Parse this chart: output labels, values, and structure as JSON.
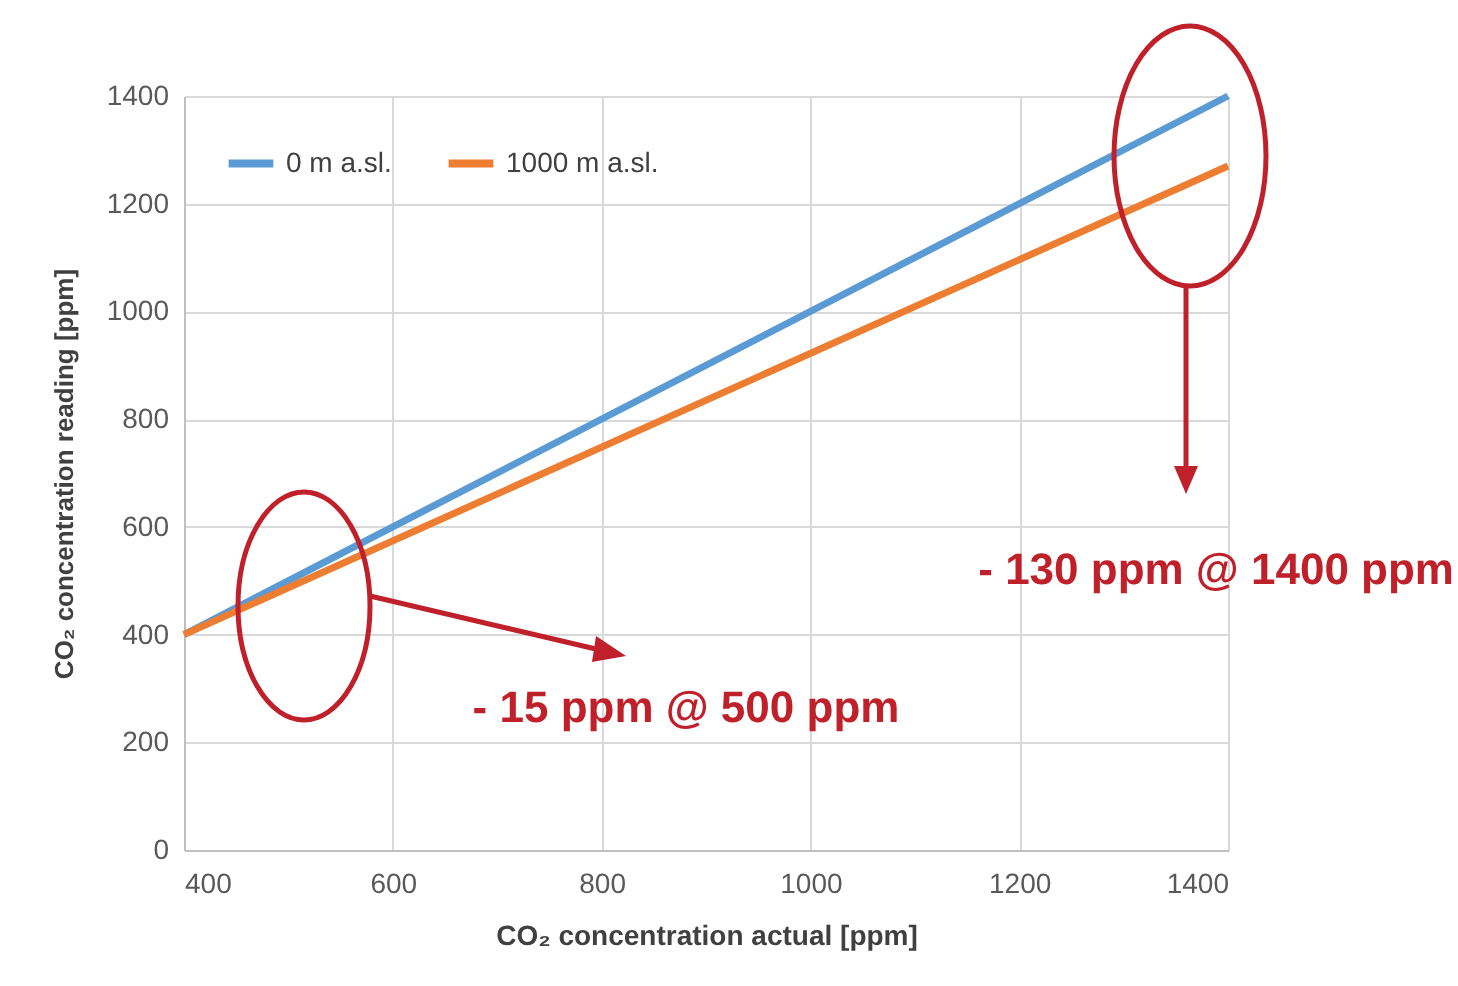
{
  "chart_data": {
    "type": "line",
    "xlabel": "CO₂ concentration actual [ppm]",
    "ylabel": "CO₂ concentration reading [ppm]",
    "x": [
      400,
      1400
    ],
    "series": [
      {
        "name": "0 m a.sl.",
        "color": "#5b9bd5",
        "values": [
          400,
          1400
        ]
      },
      {
        "name": "1000 m a.sl.",
        "color": "#ed7d31",
        "values": [
          400,
          1270
        ]
      }
    ],
    "xlim": [
      400,
      1400
    ],
    "xticks": [
      400,
      600,
      800,
      1000,
      1200,
      1400
    ],
    "ylim": [
      0,
      1400
    ],
    "yticks": [
      0,
      200,
      400,
      600,
      800,
      1000,
      1200,
      1400
    ],
    "grid": true,
    "legend": "top left",
    "marker": "none",
    "line_style": "solid",
    "annotations": [
      "- 15 ppm @ 500 ppm",
      "- 130 ppm @ 1400 ppm"
    ]
  }
}
